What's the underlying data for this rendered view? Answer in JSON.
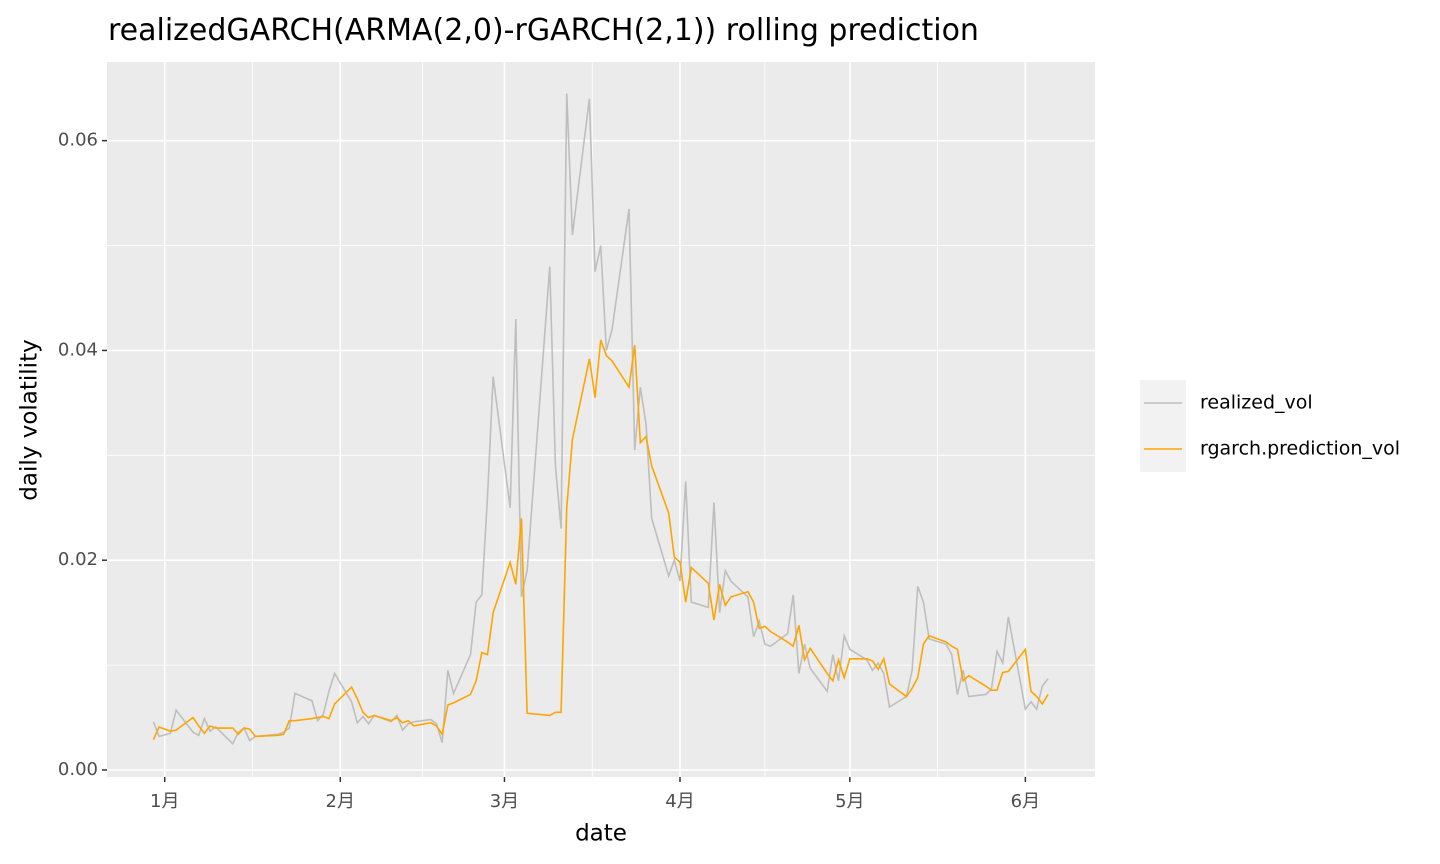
{
  "chart_data": {
    "type": "line",
    "title": "realizedGARCH(ARMA(2,0)-rGARCH(2,1)) rolling prediction",
    "x_label": "date",
    "y_label": "daily volatility",
    "x": [
      -2,
      -1,
      1,
      2,
      5,
      6,
      7,
      8,
      9,
      12,
      13,
      14,
      15,
      16,
      20,
      21,
      22,
      23,
      26,
      27,
      28,
      29,
      30,
      33,
      34,
      35,
      36,
      37,
      40,
      41,
      42,
      43,
      44,
      47,
      48,
      49,
      50,
      51,
      54,
      55,
      56,
      57,
      58,
      61,
      62,
      63,
      64,
      68,
      69,
      70,
      71,
      72,
      75,
      76,
      77,
      78,
      79,
      82,
      83,
      84,
      85,
      86,
      89,
      90,
      91,
      92,
      93,
      96,
      97,
      98,
      99,
      100,
      103,
      104,
      105,
      106,
      107,
      110,
      111,
      112,
      113,
      114,
      117,
      118,
      119,
      120,
      121,
      124,
      125,
      126,
      127,
      128,
      131,
      132,
      133,
      134,
      135,
      138,
      139,
      140,
      141,
      142,
      145,
      146,
      147,
      148,
      149,
      152,
      153,
      154,
      155,
      156
    ],
    "series": [
      {
        "name": "realized_vol",
        "color": "#bebebe",
        "values": [
          0.0046,
          0.0032,
          0.0035,
          0.0057,
          0.0036,
          0.0033,
          0.0049,
          0.0037,
          0.0041,
          0.0025,
          0.0036,
          0.004,
          0.0028,
          0.0032,
          0.0034,
          0.0036,
          0.004,
          0.0073,
          0.0066,
          0.0047,
          0.0053,
          0.0075,
          0.0092,
          0.0065,
          0.0045,
          0.0051,
          0.0044,
          0.0052,
          0.0046,
          0.0052,
          0.0038,
          0.0044,
          0.0046,
          0.0048,
          0.0044,
          0.0026,
          0.0095,
          0.0073,
          0.011,
          0.016,
          0.0167,
          0.026,
          0.0375,
          0.025,
          0.043,
          0.0165,
          0.019,
          0.048,
          0.029,
          0.023,
          0.0645,
          0.051,
          0.064,
          0.0475,
          0.05,
          0.04,
          0.042,
          0.0535,
          0.0305,
          0.0365,
          0.033,
          0.024,
          0.0185,
          0.02,
          0.018,
          0.0275,
          0.016,
          0.0155,
          0.0255,
          0.015,
          0.019,
          0.018,
          0.0165,
          0.0127,
          0.0142,
          0.012,
          0.0118,
          0.013,
          0.0167,
          0.0092,
          0.012,
          0.0097,
          0.0075,
          0.011,
          0.0085,
          0.0128,
          0.0115,
          0.0105,
          0.0095,
          0.0102,
          0.0092,
          0.006,
          0.007,
          0.0095,
          0.0175,
          0.016,
          0.0125,
          0.012,
          0.011,
          0.0072,
          0.0095,
          0.007,
          0.0072,
          0.0077,
          0.0113,
          0.0102,
          0.0146,
          0.0058,
          0.0065,
          0.0058,
          0.008,
          0.0087
        ]
      },
      {
        "name": "rgarch.prediction_vol",
        "color": "#ffa500",
        "values": [
          0.0029,
          0.0041,
          0.0037,
          0.0038,
          0.005,
          0.0042,
          0.0035,
          0.0042,
          0.004,
          0.004,
          0.0034,
          0.004,
          0.0039,
          0.0032,
          0.0033,
          0.0034,
          0.0047,
          0.0047,
          0.0049,
          0.005,
          0.0051,
          0.0049,
          0.0063,
          0.0079,
          0.0068,
          0.0055,
          0.005,
          0.0052,
          0.0047,
          0.005,
          0.0045,
          0.0047,
          0.0042,
          0.0045,
          0.0042,
          0.0034,
          0.0062,
          0.0064,
          0.0072,
          0.0085,
          0.0112,
          0.011,
          0.015,
          0.0198,
          0.0177,
          0.024,
          0.0054,
          0.0052,
          0.0055,
          0.0055,
          0.025,
          0.0315,
          0.0392,
          0.0355,
          0.041,
          0.0395,
          0.039,
          0.0365,
          0.0405,
          0.0312,
          0.0318,
          0.029,
          0.0245,
          0.0203,
          0.0198,
          0.016,
          0.0193,
          0.0178,
          0.0143,
          0.0177,
          0.0157,
          0.0165,
          0.017,
          0.016,
          0.0135,
          0.0137,
          0.0132,
          0.0122,
          0.0118,
          0.0138,
          0.0105,
          0.0116,
          0.0092,
          0.0085,
          0.0105,
          0.0088,
          0.0106,
          0.0106,
          0.0104,
          0.0096,
          0.0106,
          0.0082,
          0.007,
          0.0078,
          0.0088,
          0.012,
          0.0128,
          0.0122,
          0.0118,
          0.0115,
          0.0085,
          0.009,
          0.008,
          0.0076,
          0.0076,
          0.0093,
          0.0094,
          0.0115,
          0.0075,
          0.007,
          0.0063,
          0.0072
        ]
      }
    ],
    "xlim": [
      -10.2,
      164.3
    ],
    "xticks": [
      {
        "value": 0,
        "label": "1月"
      },
      {
        "value": 31,
        "label": "2月"
      },
      {
        "value": 60,
        "label": "3月"
      },
      {
        "value": 91,
        "label": "4月"
      },
      {
        "value": 121,
        "label": "5月"
      },
      {
        "value": 152,
        "label": "6月"
      }
    ],
    "ylim": [
      -0.00067,
      0.0675
    ],
    "yticks": [
      {
        "value": 0,
        "label": "0.00"
      },
      0.02,
      0.04,
      0.06
    ],
    "grid": true
  }
}
